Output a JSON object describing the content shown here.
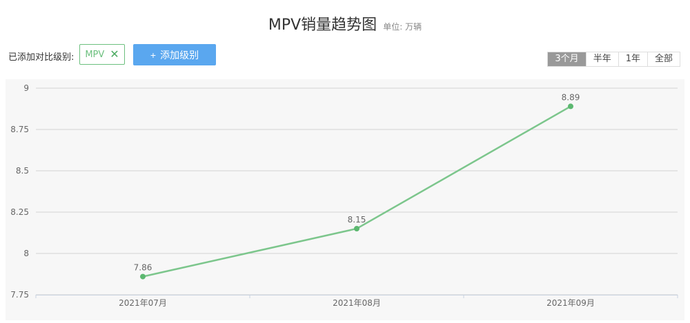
{
  "header": {
    "title": "MPV销量趋势图",
    "unit": "单位: 万辆"
  },
  "compare": {
    "label": "已添加对比级别:",
    "chip_label": "MPV",
    "chip_close": "✕",
    "add_button_label": "添加级别",
    "add_button_plus": "+"
  },
  "range_tabs": [
    {
      "label": "3个月",
      "active": true
    },
    {
      "label": "半年",
      "active": false
    },
    {
      "label": "1年",
      "active": false
    },
    {
      "label": "全部",
      "active": false
    }
  ],
  "colors": {
    "line": "#7cc68c",
    "point": "#5cb870",
    "grid": "#d3d3d3",
    "button": "#5aa7ef"
  },
  "chart_data": {
    "type": "line",
    "categories": [
      "2021年07月",
      "2021年08月",
      "2021年09月"
    ],
    "series": [
      {
        "values": [
          7.86,
          8.15,
          8.89
        ],
        "labels": [
          "7.86",
          "8.15",
          "8.89"
        ]
      }
    ],
    "ylim": [
      7.75,
      9
    ],
    "yticks": [
      "9",
      "8.75",
      "8.5",
      "8.25",
      "8",
      "7.75"
    ],
    "ytick_values": [
      9,
      8.75,
      8.5,
      8.25,
      8,
      7.75
    ],
    "grid": true
  }
}
